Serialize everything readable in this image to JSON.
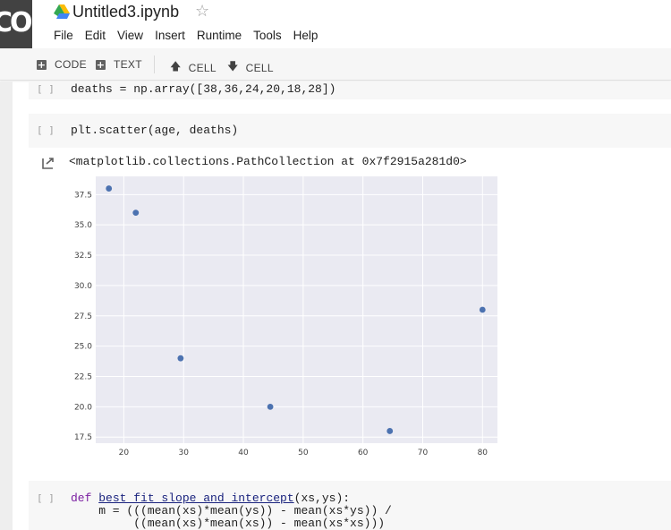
{
  "app": {
    "logo_text": "CO",
    "notebook_title": "Untitled3.ipynb",
    "star_icon": "star-outline-icon",
    "drive_icon": "google-drive-icon"
  },
  "menu": [
    "File",
    "Edit",
    "View",
    "Insert",
    "Runtime",
    "Tools",
    "Help"
  ],
  "toolbar": {
    "add_code": "CODE",
    "add_text": "TEXT",
    "move_up": "CELL",
    "move_down": "CELL"
  },
  "cells": {
    "c1": {
      "run": "[ ]",
      "line": "deaths = np.array([38,36,24,20,18,28])"
    },
    "c2": {
      "run": "[ ]",
      "line": "plt.scatter(age, deaths)"
    },
    "output": {
      "text": "<matplotlib.collections.PathCollection at 0x7f2915a281d0>"
    },
    "c3": {
      "run": "[ ]",
      "lines": [
        "def best_fit_slope_and_intercept(xs,ys):",
        "    m = (((mean(xs)*mean(ys)) - mean(xs*ys)) /",
        "         ((mean(xs)*mean(xs)) - mean(xs*xs)))"
      ]
    }
  },
  "chart_data": {
    "type": "scatter",
    "x": [
      17.5,
      22,
      29.5,
      44.5,
      64.5,
      80
    ],
    "y": [
      38,
      36,
      24,
      20,
      18,
      28
    ],
    "xlim": [
      15.3,
      82.5
    ],
    "ylim": [
      17.0,
      39.0
    ],
    "xticks": [
      20,
      30,
      40,
      50,
      60,
      70,
      80
    ],
    "yticks": [
      17.5,
      20.0,
      22.5,
      25.0,
      27.5,
      30.0,
      32.5,
      35.0,
      37.5
    ],
    "xtick_labels": [
      "20",
      "30",
      "40",
      "50",
      "60",
      "70",
      "80"
    ],
    "ytick_labels": [
      "17.5",
      "20.0",
      "22.5",
      "25.0",
      "27.5",
      "30.0",
      "32.5",
      "35.0",
      "37.5"
    ],
    "grid": true,
    "colors": {
      "background": "#eaeaf2",
      "grid": "#ffffff",
      "marker": "#4c72b0"
    }
  }
}
